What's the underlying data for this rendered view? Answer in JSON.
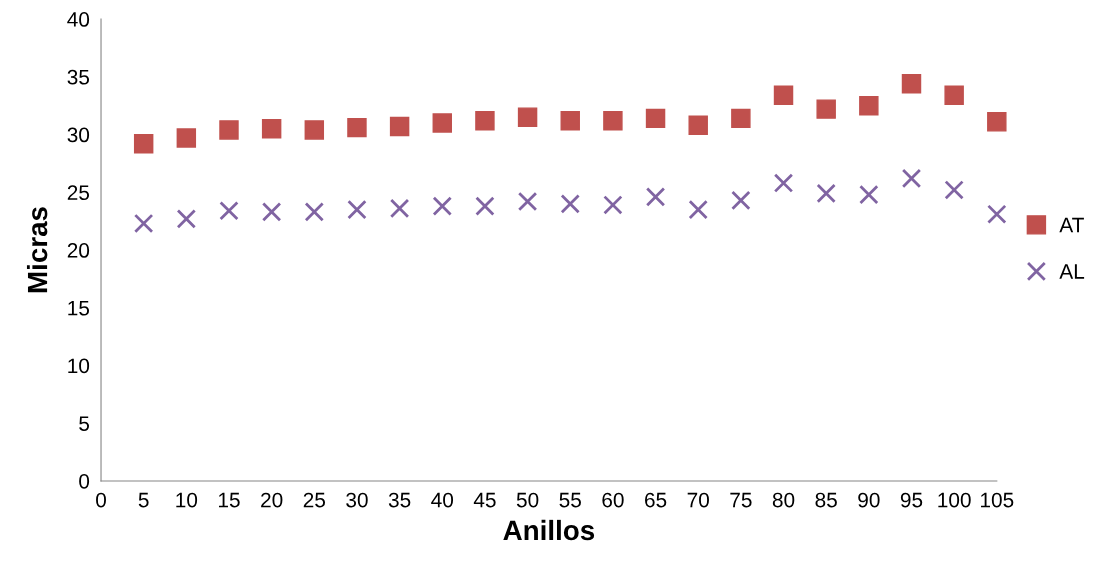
{
  "chart_data": {
    "type": "scatter",
    "xlabel": "Anillos",
    "ylabel": "Micras",
    "x": [
      5,
      10,
      15,
      20,
      25,
      30,
      35,
      40,
      45,
      50,
      55,
      60,
      65,
      70,
      75,
      80,
      85,
      90,
      95,
      100,
      105
    ],
    "series": [
      {
        "name": "AT",
        "color": "#c0504d",
        "marker": "square",
        "values": [
          29.2,
          29.7,
          30.4,
          30.5,
          30.4,
          30.6,
          30.7,
          31.0,
          31.2,
          31.5,
          31.2,
          31.2,
          31.4,
          30.8,
          31.4,
          33.4,
          32.2,
          32.5,
          34.4,
          33.4,
          31.1
        ]
      },
      {
        "name": "AL",
        "color": "#8064a2",
        "marker": "cross",
        "values": [
          22.3,
          22.7,
          23.4,
          23.3,
          23.3,
          23.5,
          23.6,
          23.8,
          23.8,
          24.2,
          24.0,
          23.9,
          24.6,
          23.5,
          24.3,
          25.8,
          24.9,
          24.8,
          26.2,
          25.2,
          23.1
        ]
      }
    ],
    "xlim": [
      0,
      105
    ],
    "xticks": [
      0,
      5,
      10,
      15,
      20,
      25,
      30,
      35,
      40,
      45,
      50,
      55,
      60,
      65,
      70,
      75,
      80,
      85,
      90,
      95,
      100,
      105
    ],
    "ylim": [
      0,
      40
    ],
    "yticks": [
      0,
      5,
      10,
      15,
      20,
      25,
      30,
      35,
      40
    ],
    "grid": false,
    "legend": "right"
  }
}
